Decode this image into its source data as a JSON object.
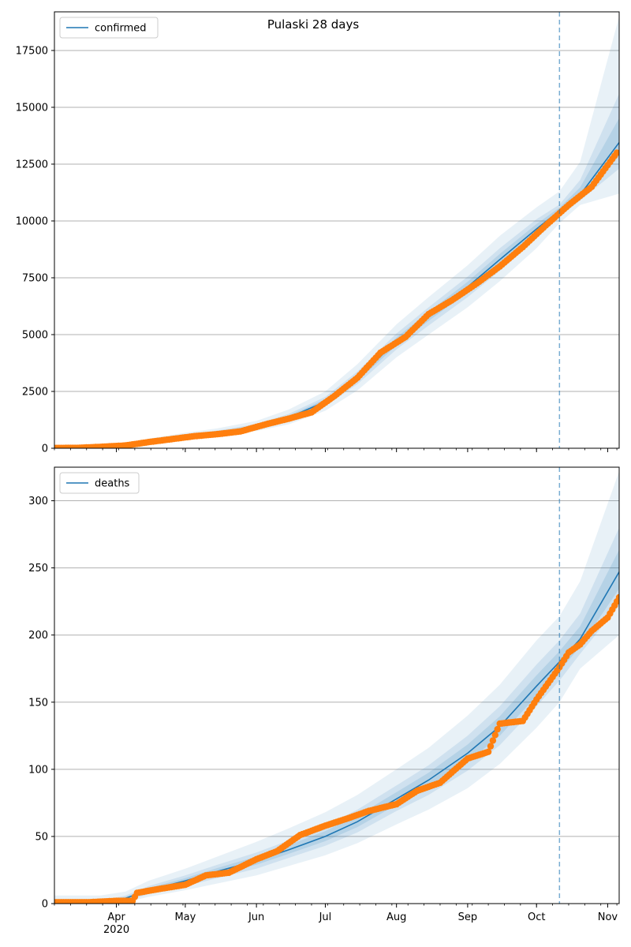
{
  "title": "Pulaski 28 days",
  "colors": {
    "model": "#1f77b4",
    "observed": "#ff7f0e",
    "band": "#1f77b4",
    "grid": "#b0b0b0",
    "forecast_line": "#1f77b4"
  },
  "x_axis": {
    "start": "2020-03-05",
    "end": "2020-11-06",
    "month_ticks": [
      {
        "date": "2020-04-01",
        "label": "Apr",
        "sublabel": "2020"
      },
      {
        "date": "2020-05-01",
        "label": "May",
        "sublabel": ""
      },
      {
        "date": "2020-06-01",
        "label": "Jun",
        "sublabel": ""
      },
      {
        "date": "2020-07-01",
        "label": "Jul",
        "sublabel": ""
      },
      {
        "date": "2020-08-01",
        "label": "Aug",
        "sublabel": ""
      },
      {
        "date": "2020-09-01",
        "label": "Sep",
        "sublabel": ""
      },
      {
        "date": "2020-10-01",
        "label": "Oct",
        "sublabel": ""
      },
      {
        "date": "2020-11-01",
        "label": "Nov",
        "sublabel": ""
      }
    ],
    "forecast_start": "2020-10-11"
  },
  "chart_data": [
    {
      "type": "line",
      "legend": "confirmed",
      "legend_position": "top-left",
      "grid": "y",
      "ylim": [
        0,
        19200
      ],
      "yticks": [
        "0",
        "2500",
        "5000",
        "7500",
        "10000",
        "12500",
        "15000",
        "17500"
      ],
      "model": {
        "x": [
          "2020-03-05",
          "2020-03-20",
          "2020-04-01",
          "2020-04-15",
          "2020-05-01",
          "2020-05-15",
          "2020-06-01",
          "2020-06-15",
          "2020-07-01",
          "2020-07-15",
          "2020-08-01",
          "2020-08-15",
          "2020-09-01",
          "2020-09-15",
          "2020-10-01",
          "2020-10-11",
          "2020-10-20",
          "2020-11-06"
        ],
        "y": [
          0,
          30,
          80,
          280,
          520,
          700,
          960,
          1350,
          2050,
          3100,
          4700,
          5800,
          7100,
          8300,
          9650,
          10450,
          11150,
          13450
        ],
        "band_low_outer": [
          0,
          15,
          50,
          180,
          400,
          560,
          760,
          1050,
          1650,
          2550,
          4000,
          5000,
          6200,
          7350,
          8800,
          9900,
          10700,
          11200
        ],
        "band_low_mid": [
          0,
          22,
          65,
          230,
          460,
          630,
          860,
          1200,
          1850,
          2820,
          4350,
          5400,
          6650,
          7800,
          9220,
          10180,
          10900,
          12300
        ],
        "band_high_mid": [
          0,
          40,
          100,
          340,
          590,
          780,
          1070,
          1510,
          2260,
          3380,
          5050,
          6200,
          7550,
          8800,
          10080,
          10720,
          11800,
          15600
        ],
        "band_high_outer": [
          0,
          60,
          130,
          420,
          680,
          880,
          1200,
          1700,
          2500,
          3700,
          5450,
          6650,
          8050,
          9350,
          10600,
          11300,
          12600,
          19000
        ]
      },
      "observed": {
        "x": [
          "2020-03-05",
          "2020-03-15",
          "2020-03-25",
          "2020-04-05",
          "2020-04-15",
          "2020-04-25",
          "2020-05-05",
          "2020-05-15",
          "2020-05-25",
          "2020-06-05",
          "2020-06-15",
          "2020-06-25",
          "2020-07-05",
          "2020-07-15",
          "2020-07-25",
          "2020-08-05",
          "2020-08-15",
          "2020-08-25",
          "2020-09-05",
          "2020-09-15",
          "2020-09-25",
          "2020-10-05",
          "2020-10-15",
          "2020-10-25",
          "2020-11-05"
        ],
        "y": [
          10,
          15,
          60,
          120,
          270,
          400,
          530,
          620,
          740,
          1050,
          1300,
          1580,
          2300,
          3100,
          4200,
          4900,
          5900,
          6500,
          7250,
          8000,
          8850,
          9800,
          10700,
          11500,
          13000
        ]
      }
    },
    {
      "type": "line",
      "legend": "deaths",
      "legend_position": "top-left",
      "grid": "y",
      "ylim": [
        0,
        325
      ],
      "yticks": [
        "0",
        "50",
        "100",
        "150",
        "200",
        "250",
        "300"
      ],
      "model": {
        "x": [
          "2020-03-05",
          "2020-03-25",
          "2020-04-05",
          "2020-04-15",
          "2020-05-01",
          "2020-05-15",
          "2020-06-01",
          "2020-06-15",
          "2020-07-01",
          "2020-07-15",
          "2020-08-01",
          "2020-08-15",
          "2020-09-01",
          "2020-09-15",
          "2020-10-01",
          "2020-10-11",
          "2020-10-20",
          "2020-11-06"
        ],
        "y": [
          0,
          1,
          4,
          10,
          17,
          24,
          32,
          40,
          50,
          61,
          78,
          92,
          112,
          132,
          162,
          180,
          197,
          247
        ],
        "band_low_outer": [
          0,
          0,
          1,
          5,
          10,
          15,
          21,
          28,
          36,
          45,
          59,
          70,
          86,
          104,
          131,
          150,
          175,
          200
        ],
        "band_low_mid": [
          0,
          0,
          2,
          7,
          13,
          19,
          26,
          34,
          43,
          53,
          69,
          81,
          99,
          118,
          147,
          166,
          186,
          222
        ],
        "band_high_mid": [
          0,
          2,
          6,
          13,
          21,
          29,
          38,
          47,
          58,
          70,
          88,
          103,
          125,
          147,
          178,
          196,
          216,
          280
        ],
        "band_high_outer": [
          6,
          6,
          9,
          17,
          26,
          35,
          46,
          56,
          68,
          81,
          100,
          116,
          140,
          163,
          196,
          214,
          240,
          322
        ]
      },
      "observed": {
        "x": [
          "2020-03-05",
          "2020-03-20",
          "2020-04-01",
          "2020-04-08",
          "2020-04-10",
          "2020-04-20",
          "2020-05-01",
          "2020-05-10",
          "2020-05-20",
          "2020-06-01",
          "2020-06-10",
          "2020-06-20",
          "2020-07-01",
          "2020-07-10",
          "2020-07-20",
          "2020-08-01",
          "2020-08-10",
          "2020-08-20",
          "2020-09-01",
          "2020-09-10",
          "2020-09-15",
          "2020-09-25",
          "2020-10-01",
          "2020-10-11",
          "2020-10-15",
          "2020-10-20",
          "2020-10-25",
          "2020-11-01",
          "2020-11-06"
        ],
        "y": [
          1,
          1,
          2,
          2,
          8,
          11,
          14,
          21,
          23,
          33,
          39,
          51,
          58,
          63,
          69,
          74,
          84,
          90,
          108,
          113,
          134,
          136,
          152,
          176,
          187,
          193,
          203,
          213,
          228
        ]
      }
    }
  ]
}
